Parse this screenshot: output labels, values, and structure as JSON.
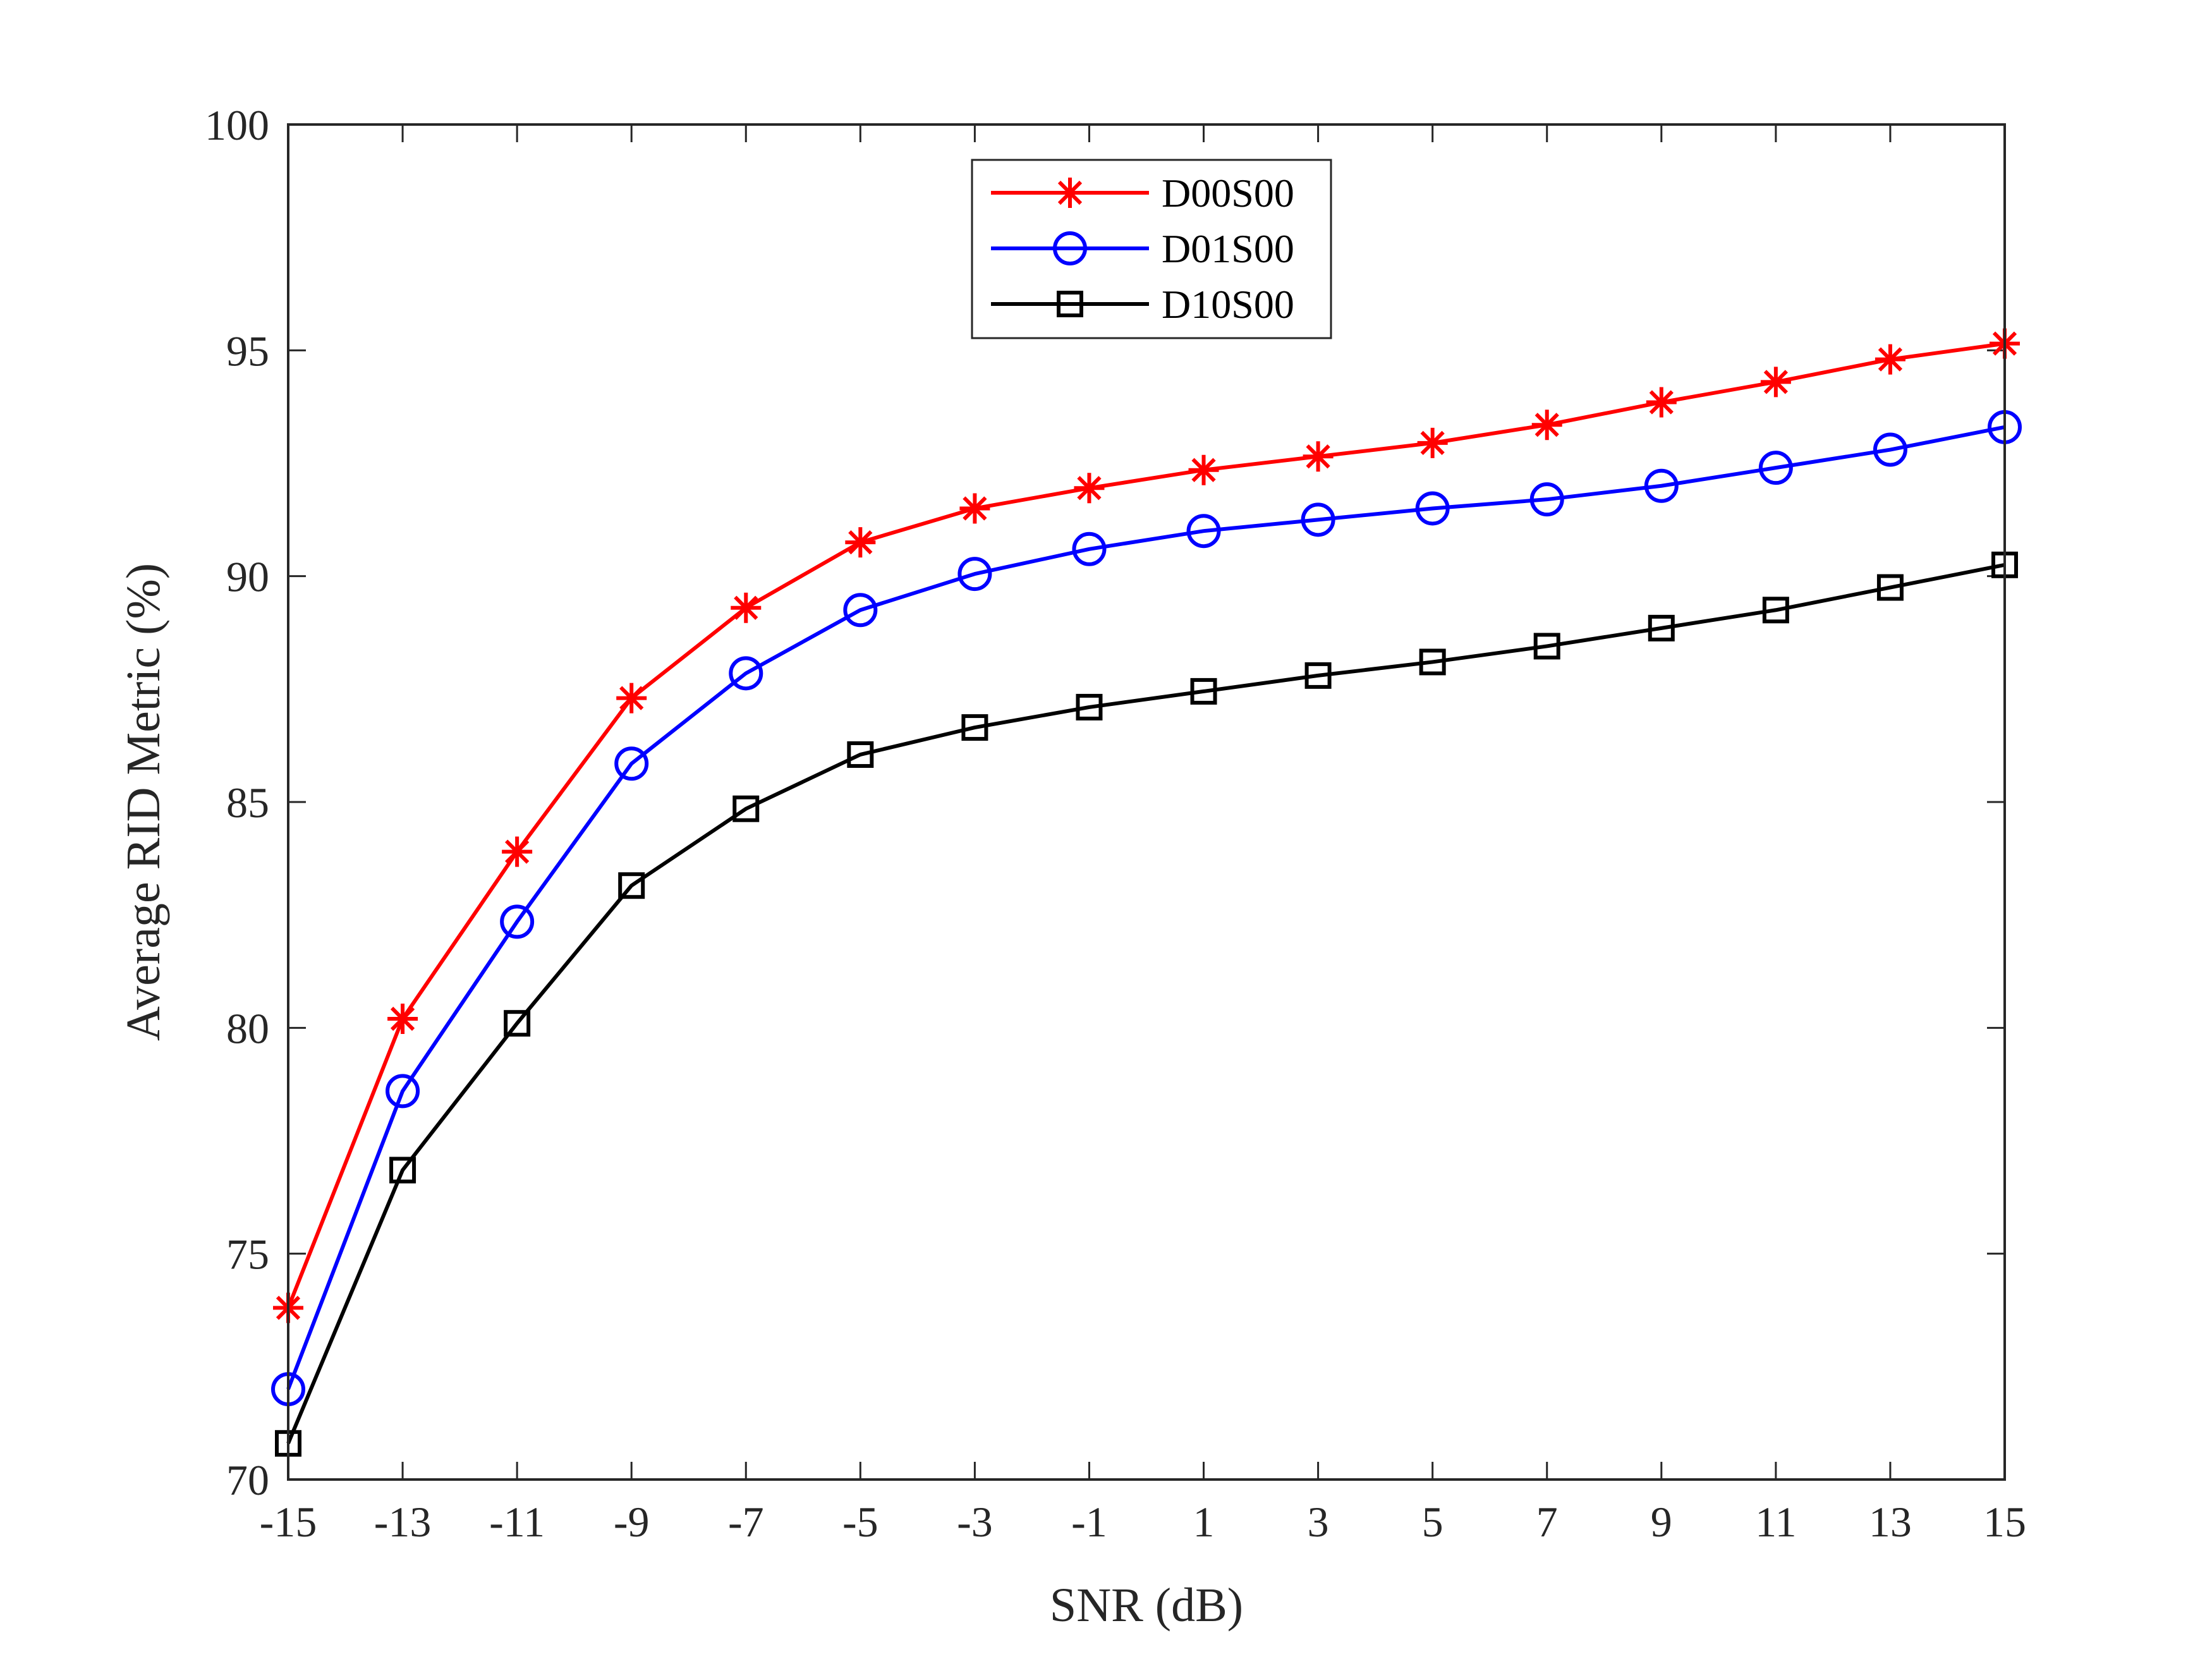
{
  "chart_data": {
    "type": "line",
    "title": "",
    "xlabel": "SNR (dB)",
    "ylabel": "Average RID Metric (%)",
    "xlim": [
      -15,
      15
    ],
    "ylim": [
      70,
      100
    ],
    "x": [
      -15,
      -13,
      -11,
      -9,
      -7,
      -5,
      -3,
      -1,
      1,
      3,
      5,
      7,
      9,
      11,
      13,
      15
    ],
    "x_ticks": [
      "-15",
      "-13",
      "-11",
      "-9",
      "-7",
      "-5",
      "-3",
      "-1",
      "1",
      "3",
      "5",
      "7",
      "9",
      "11",
      "13",
      "15"
    ],
    "y_ticks": [
      "70",
      "75",
      "80",
      "85",
      "90",
      "95",
      "100"
    ],
    "grid": false,
    "legend_position": "top-center",
    "series": [
      {
        "name": "D00S00",
        "color": "#ff0000",
        "marker": "asterisk",
        "values": [
          73.8,
          80.2,
          83.9,
          87.3,
          89.3,
          90.75,
          91.5,
          91.95,
          92.35,
          92.65,
          92.95,
          93.35,
          93.85,
          94.3,
          94.8,
          95.15
        ]
      },
      {
        "name": "D01S00",
        "color": "#0000ff",
        "marker": "circle",
        "values": [
          72.0,
          78.6,
          82.35,
          85.85,
          87.85,
          89.25,
          90.05,
          90.6,
          91.0,
          91.25,
          91.5,
          91.7,
          92.0,
          92.4,
          92.8,
          93.3
        ]
      },
      {
        "name": "D10S00",
        "color": "#000000",
        "marker": "square",
        "values": [
          70.8,
          76.85,
          80.1,
          83.15,
          84.85,
          86.05,
          86.65,
          87.1,
          87.45,
          87.8,
          88.1,
          88.45,
          88.85,
          89.25,
          89.75,
          90.25
        ]
      }
    ]
  }
}
